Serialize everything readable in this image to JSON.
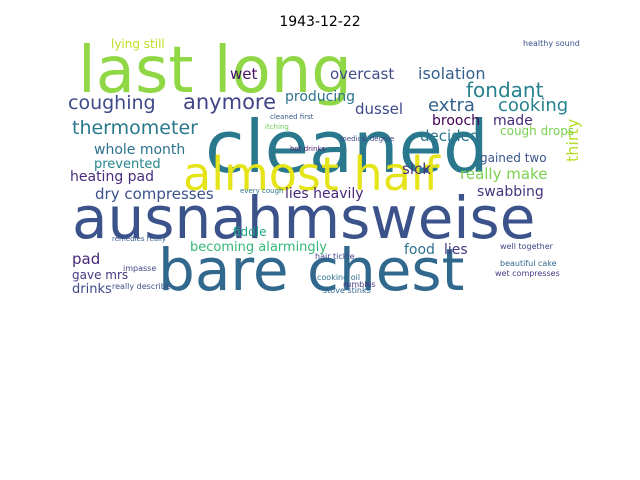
{
  "chart_data": {
    "type": "wordcloud",
    "title": "1943-12-22",
    "words": [
      {
        "text": "last long",
        "color": "#8fd744"
      },
      {
        "text": "cleaned",
        "color": "#2a788e"
      },
      {
        "text": "almost half",
        "color": "#e5e419"
      },
      {
        "text": "ausnahmsweise",
        "color": "#3b528b"
      },
      {
        "text": "bare chest",
        "color": "#31688e"
      },
      {
        "text": "coughing",
        "color": "#3e4a89"
      },
      {
        "text": "anymore",
        "color": "#414487"
      },
      {
        "text": "thermometer",
        "color": "#2a788e"
      },
      {
        "text": "whole month",
        "color": "#2c728e"
      },
      {
        "text": "prevented",
        "color": "#25858e"
      },
      {
        "text": "heating pad",
        "color": "#472d7b"
      },
      {
        "text": "dry compresses",
        "color": "#3b528b"
      },
      {
        "text": "lies heavily",
        "color": "#482878"
      },
      {
        "text": "becoming alarmingly",
        "color": "#35b779"
      },
      {
        "text": "pad",
        "color": "#482878"
      },
      {
        "text": "gave mrs",
        "color": "#443983"
      },
      {
        "text": "drinks",
        "color": "#3e4989"
      },
      {
        "text": "fiddle",
        "color": "#20a486"
      },
      {
        "text": "food",
        "color": "#2d708e"
      },
      {
        "text": "lies",
        "color": "#453781"
      },
      {
        "text": "wet",
        "color": "#471164"
      },
      {
        "text": "overcast",
        "color": "#3e4c8a"
      },
      {
        "text": "isolation",
        "color": "#355f8d"
      },
      {
        "text": "fondant",
        "color": "#27808e"
      },
      {
        "text": "extra",
        "color": "#33638d"
      },
      {
        "text": "cooking",
        "color": "#26828e"
      },
      {
        "text": "brooch",
        "color": "#440154"
      },
      {
        "text": "made",
        "color": "#472a7a"
      },
      {
        "text": "producing",
        "color": "#2c738e"
      },
      {
        "text": "dussel",
        "color": "#3e4989"
      },
      {
        "text": "decided",
        "color": "#2a768e"
      },
      {
        "text": "thirty",
        "color": "#b5de2b"
      },
      {
        "text": "cough drops",
        "color": "#7ad151"
      },
      {
        "text": "gained two",
        "color": "#39558c"
      },
      {
        "text": "sick",
        "color": "#46327e"
      },
      {
        "text": "really make",
        "color": "#7ad151"
      },
      {
        "text": "swabbing",
        "color": "#46337f"
      },
      {
        "text": "lying still",
        "color": "#bddf26"
      },
      {
        "text": "healthy sound",
        "color": "#3b528b"
      },
      {
        "text": "well together",
        "color": "#404688"
      },
      {
        "text": "beautiful cake",
        "color": "#31688e"
      },
      {
        "text": "wet compresses",
        "color": "#443a83"
      },
      {
        "text": "hair tickle",
        "color": "#3f4788"
      },
      {
        "text": "stove stinks",
        "color": "#31688e"
      },
      {
        "text": "cooking oil",
        "color": "#2d708e"
      },
      {
        "text": "rumbles",
        "color": "#453781"
      },
      {
        "text": "impasse",
        "color": "#414487"
      },
      {
        "text": "really describe",
        "color": "#3b528b"
      },
      {
        "text": "remedies really",
        "color": "#38588c"
      },
      {
        "text": "every cough",
        "color": "#2a788e"
      },
      {
        "text": "hot drinks",
        "color": "#482475"
      },
      {
        "text": "medical degree",
        "color": "#3e4989"
      },
      {
        "text": "cleaned first",
        "color": "#38588c"
      },
      {
        "text": "itching",
        "color": "#6ece58"
      }
    ]
  }
}
